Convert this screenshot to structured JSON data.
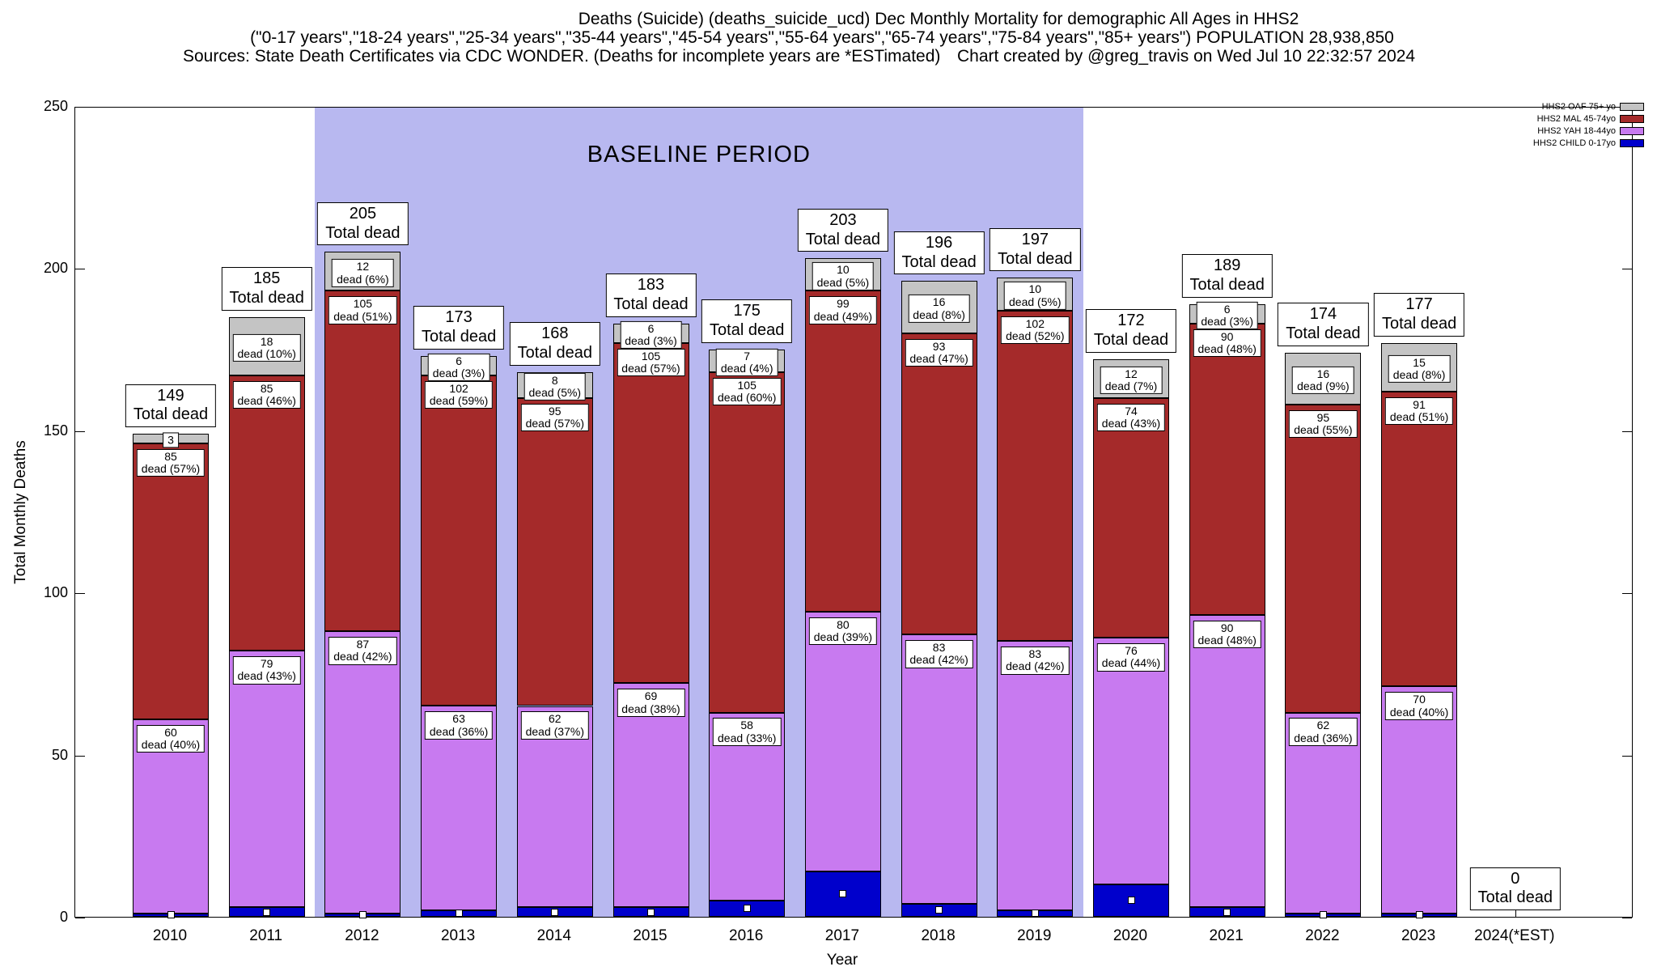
{
  "title": {
    "line1": "Deaths (Suicide) (deaths_suicide_ucd) Dec Monthly Mortality for demographic All Ages in HHS2",
    "line2": "(\"0-17 years\",\"18-24 years\",\"25-34 years\",\"35-44 years\",\"45-54 years\",\"55-64 years\",\"65-74 years\",\"75-84 years\",\"85+ years\") POPULATION 28,938,850",
    "sources": "Sources: State Death Certificates via CDC WONDER. (Deaths for incomplete years are *ESTimated)",
    "credit": "Chart created by @greg_travis on Wed Jul 10 22:32:57 2024"
  },
  "axes": {
    "ylabel": "Total Monthly Deaths",
    "xlabel": "Year",
    "yticks": [
      0,
      50,
      100,
      150,
      200,
      250
    ],
    "ylim": [
      0,
      250
    ]
  },
  "baseline": {
    "label": "BASELINE PERIOD",
    "from": "2012",
    "to": "2019",
    "color": "#b8b8f0"
  },
  "legend": [
    {
      "label": "HHS2 OAF 75+ yo",
      "color": "#c4c4c4"
    },
    {
      "label": "HHS2 MAL 45-74yo",
      "color": "#a52a2a"
    },
    {
      "label": "HHS2 YAH 18-44yo",
      "color": "#c87af0"
    },
    {
      "label": "HHS2 CHILD 0-17yo",
      "color": "#0000cc"
    }
  ],
  "chart_data": {
    "type": "bar",
    "stacked": true,
    "grid": false,
    "legend_position": "top-right",
    "categories": [
      "2010",
      "2011",
      "2012",
      "2013",
      "2014",
      "2015",
      "2016",
      "2017",
      "2018",
      "2019",
      "2020",
      "2021",
      "2022",
      "2023",
      "2024(*EST)"
    ],
    "totals": [
      149,
      185,
      205,
      173,
      168,
      183,
      175,
      203,
      196,
      197,
      172,
      189,
      174,
      177,
      0
    ],
    "total_label": "Total dead",
    "series": [
      {
        "name": "HHS2 CHILD 0-17yo",
        "color": "#0000cc",
        "values": [
          1,
          3,
          1,
          2,
          3,
          3,
          5,
          14,
          4,
          2,
          10,
          3,
          1,
          1,
          0
        ],
        "labels": null
      },
      {
        "name": "HHS2 YAH 18-44yo",
        "color": "#c87af0",
        "values": [
          60,
          79,
          87,
          63,
          62,
          69,
          58,
          80,
          83,
          83,
          76,
          90,
          62,
          70,
          0
        ],
        "labels": [
          [
            "60",
            "dead (40%)"
          ],
          [
            "79",
            "dead (43%)"
          ],
          [
            "87",
            "dead (42%)"
          ],
          [
            "63",
            "dead (36%)"
          ],
          [
            "62",
            "dead (37%)"
          ],
          [
            "69",
            "dead (38%)"
          ],
          [
            "58",
            "dead (33%)"
          ],
          [
            "80",
            "dead (39%)"
          ],
          [
            "83",
            "dead (42%)"
          ],
          [
            "83",
            "dead (42%)"
          ],
          [
            "76",
            "dead (44%)"
          ],
          [
            "90",
            "dead (48%)"
          ],
          [
            "62",
            "dead (36%)"
          ],
          [
            "70",
            "dead (40%)"
          ],
          null
        ]
      },
      {
        "name": "HHS2 MAL 45-74yo",
        "color": "#a52a2a",
        "values": [
          85,
          85,
          105,
          102,
          95,
          105,
          105,
          99,
          93,
          102,
          74,
          90,
          95,
          91,
          0
        ],
        "labels": [
          [
            "85",
            "dead (57%)"
          ],
          [
            "85",
            "dead (46%)"
          ],
          [
            "105",
            "dead (51%)"
          ],
          [
            "102",
            "dead (59%)"
          ],
          [
            "95",
            "dead (57%)"
          ],
          [
            "105",
            "dead (57%)"
          ],
          [
            "105",
            "dead (60%)"
          ],
          [
            "99",
            "dead (49%)"
          ],
          [
            "93",
            "dead (47%)"
          ],
          [
            "102",
            "dead (52%)"
          ],
          [
            "74",
            "dead (43%)"
          ],
          [
            "90",
            "dead (48%)"
          ],
          [
            "95",
            "dead (55%)"
          ],
          [
            "91",
            "dead (51%)"
          ],
          null
        ]
      },
      {
        "name": "HHS2 OAF 75+ yo",
        "color": "#c4c4c4",
        "values": [
          3,
          18,
          12,
          6,
          8,
          6,
          7,
          10,
          16,
          10,
          12,
          6,
          16,
          15,
          0
        ],
        "labels": [
          [
            "3"
          ],
          [
            "18",
            "dead (10%)"
          ],
          [
            "12",
            "dead (6%)"
          ],
          [
            "6",
            "dead (3%)"
          ],
          [
            "8",
            "dead (5%)"
          ],
          [
            "6",
            "dead (3%)"
          ],
          [
            "7",
            "dead (4%)"
          ],
          [
            "10",
            "dead (5%)"
          ],
          [
            "16",
            "dead (8%)"
          ],
          [
            "10",
            "dead (5%)"
          ],
          [
            "12",
            "dead (7%)"
          ],
          [
            "6",
            "dead (3%)"
          ],
          [
            "16",
            "dead (9%)"
          ],
          [
            "15",
            "dead (8%)"
          ],
          null
        ]
      }
    ]
  }
}
